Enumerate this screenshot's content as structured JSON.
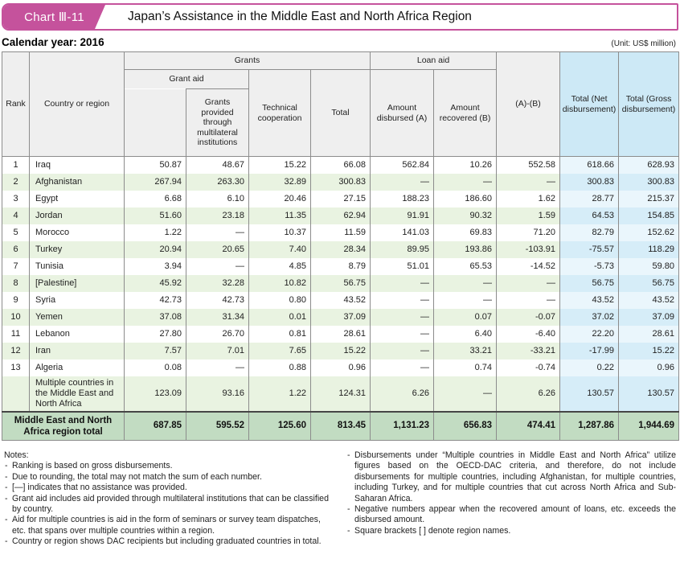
{
  "header_bar": {
    "chart_label": "Chart Ⅲ-11",
    "title": "Japan’s Assistance in the Middle East and North Africa Region"
  },
  "meta": {
    "calendar_year": "Calendar year: 2016",
    "unit": "(Unit: US$ million)"
  },
  "chart_data": {
    "type": "table",
    "title": "Japan’s Assistance in the Middle East and North Africa Region",
    "unit": "US$ million",
    "columns": {
      "rank": "Rank",
      "country": "Country or region",
      "grants_group": "Grants",
      "grant_aid_group": "Grant aid",
      "multilateral": "Grants provided through multilateral institutions",
      "technical": "Technical cooperation",
      "grants_total": "Total",
      "loan_group": "Loan aid",
      "disbursed": "Amount disbursed (A)",
      "recovered": "Amount recovered (B)",
      "a_minus_b": "(A)-(B)",
      "total_net": "Total (Net disbursement)",
      "total_gross": "Total (Gross disbursement)"
    },
    "rows": [
      {
        "rank": "1",
        "country": "Iraq",
        "band": false,
        "values": [
          "50.87",
          "48.67",
          "15.22",
          "66.08",
          "562.84",
          "10.26",
          "552.58",
          "618.66",
          "628.93"
        ]
      },
      {
        "rank": "2",
        "country": "Afghanistan",
        "band": true,
        "values": [
          "267.94",
          "263.30",
          "32.89",
          "300.83",
          "—",
          "—",
          "—",
          "300.83",
          "300.83"
        ]
      },
      {
        "rank": "3",
        "country": "Egypt",
        "band": false,
        "values": [
          "6.68",
          "6.10",
          "20.46",
          "27.15",
          "188.23",
          "186.60",
          "1.62",
          "28.77",
          "215.37"
        ]
      },
      {
        "rank": "4",
        "country": "Jordan",
        "band": true,
        "values": [
          "51.60",
          "23.18",
          "11.35",
          "62.94",
          "91.91",
          "90.32",
          "1.59",
          "64.53",
          "154.85"
        ]
      },
      {
        "rank": "5",
        "country": "Morocco",
        "band": false,
        "values": [
          "1.22",
          "—",
          "10.37",
          "11.59",
          "141.03",
          "69.83",
          "71.20",
          "82.79",
          "152.62"
        ]
      },
      {
        "rank": "6",
        "country": "Turkey",
        "band": true,
        "values": [
          "20.94",
          "20.65",
          "7.40",
          "28.34",
          "89.95",
          "193.86",
          "-103.91",
          "-75.57",
          "118.29"
        ]
      },
      {
        "rank": "7",
        "country": "Tunisia",
        "band": false,
        "values": [
          "3.94",
          "—",
          "4.85",
          "8.79",
          "51.01",
          "65.53",
          "-14.52",
          "-5.73",
          "59.80"
        ]
      },
      {
        "rank": "8",
        "country": "[Palestine]",
        "band": true,
        "values": [
          "45.92",
          "32.28",
          "10.82",
          "56.75",
          "—",
          "—",
          "—",
          "56.75",
          "56.75"
        ]
      },
      {
        "rank": "9",
        "country": "Syria",
        "band": false,
        "values": [
          "42.73",
          "42.73",
          "0.80",
          "43.52",
          "—",
          "—",
          "—",
          "43.52",
          "43.52"
        ]
      },
      {
        "rank": "10",
        "country": "Yemen",
        "band": true,
        "values": [
          "37.08",
          "31.34",
          "0.01",
          "37.09",
          "—",
          "0.07",
          "-0.07",
          "37.02",
          "37.09"
        ]
      },
      {
        "rank": "11",
        "country": "Lebanon",
        "band": false,
        "values": [
          "27.80",
          "26.70",
          "0.81",
          "28.61",
          "—",
          "6.40",
          "-6.40",
          "22.20",
          "28.61"
        ]
      },
      {
        "rank": "12",
        "country": "Iran",
        "band": true,
        "values": [
          "7.57",
          "7.01",
          "7.65",
          "15.22",
          "—",
          "33.21",
          "-33.21",
          "-17.99",
          "15.22"
        ]
      },
      {
        "rank": "13",
        "country": "Algeria",
        "band": false,
        "values": [
          "0.08",
          "—",
          "0.88",
          "0.96",
          "—",
          "0.74",
          "-0.74",
          "0.22",
          "0.96"
        ]
      },
      {
        "rank": "",
        "country": "Multiple countries in the Middle East and North Africa",
        "band": true,
        "values": [
          "123.09",
          "93.16",
          "1.22",
          "124.31",
          "6.26",
          "—",
          "6.26",
          "130.57",
          "130.57"
        ]
      }
    ],
    "total_row": {
      "label": "Middle East and North Africa region total",
      "values": [
        "687.85",
        "595.52",
        "125.60",
        "813.45",
        "1,131.23",
        "656.83",
        "474.41",
        "1,287.86",
        "1,944.69"
      ]
    }
  },
  "notes": {
    "title": "Notes:",
    "left": [
      "Ranking is based on gross disbursements.",
      "Due to rounding, the total may not match the sum of each number.",
      "[—] indicates that no assistance was provided.",
      "Grant aid includes aid provided through multilateral institutions that can be classified by country.",
      "Aid for multiple countries is aid in the form of seminars or survey team dispatches, etc. that spans over multiple countries within a region.",
      "Country or region shows DAC recipients but including graduated countries in total."
    ],
    "right": [
      "Disbursements under “Multiple countries in Middle East and North Africa” utilize figures based on the OECD-DAC criteria, and therefore, do not include disbursements for multiple countries, including Afghanistan, for multiple countries, including Turkey, and for multiple countries that cut across North Africa and Sub-Saharan Africa.",
      "Negative numbers appear when the recovered amount of loans, etc. exceeds the disbursed amount.",
      "Square brackets [ ] denote region names."
    ]
  },
  "colors": {
    "accent_pink": "#c5529c",
    "header_gray": "#efefef",
    "band_green": "#e9f3e1",
    "blue_header": "#cde9f6",
    "blue_light": "#eaf6fc",
    "blue_band": "#d6edf8",
    "total_green": "#c2dcc2"
  }
}
